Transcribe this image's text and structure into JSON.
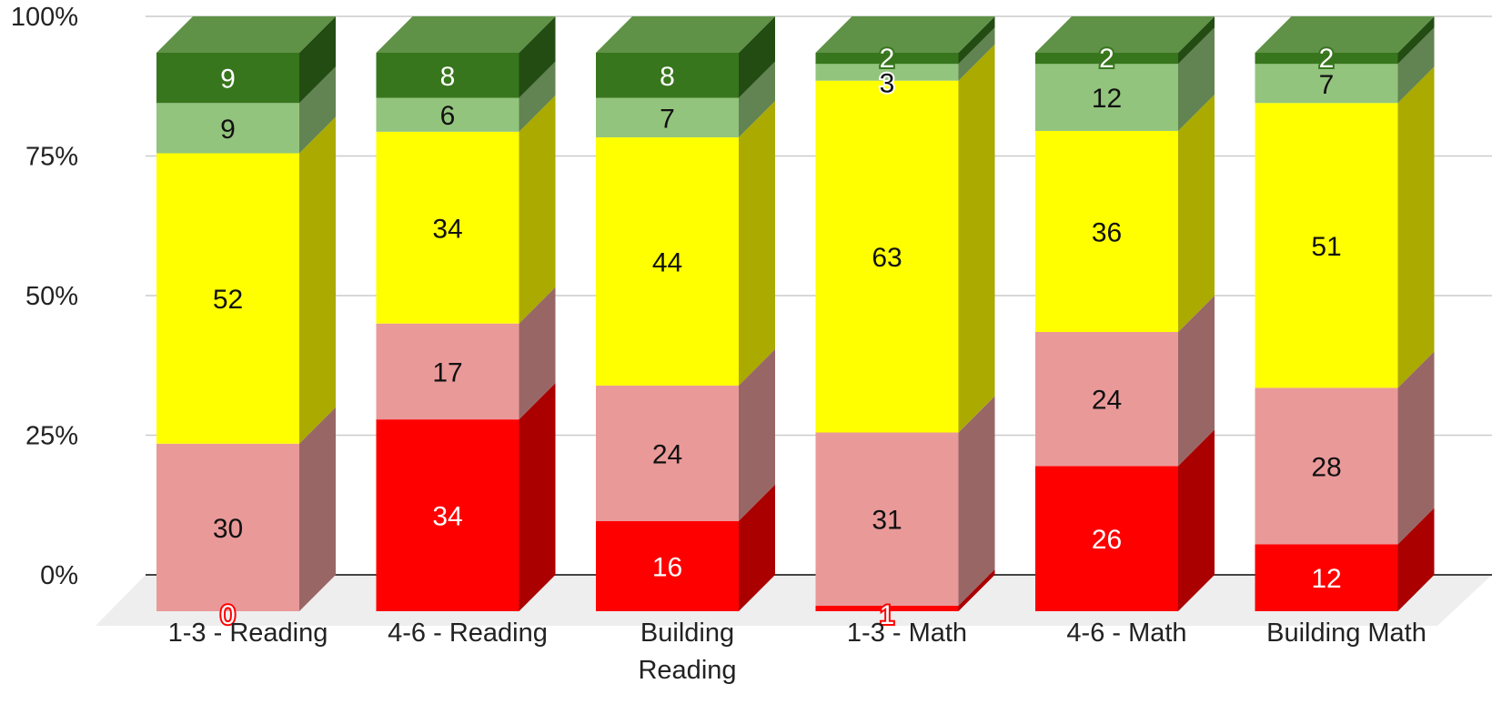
{
  "chart_data": {
    "type": "bar",
    "stacked": true,
    "normalized": true,
    "three_d": true,
    "categories": [
      "1-3 - Reading",
      "4-6 - Reading",
      "Building Reading",
      "1-3 - Math",
      "4-6 - Math",
      "Building Math"
    ],
    "category_lines": [
      [
        "1-3 - Reading"
      ],
      [
        "4-6 - Reading"
      ],
      [
        "Building",
        "Reading"
      ],
      [
        "1-3 - Math"
      ],
      [
        "4-6 - Math"
      ],
      [
        "Building Math"
      ]
    ],
    "series": [
      {
        "color": "#ff0000",
        "side_color": "#aa0000",
        "label_color": "#ffffff",
        "values": [
          0,
          34,
          16,
          1,
          26,
          12
        ]
      },
      {
        "color": "#ea9999",
        "side_color": "#996666",
        "label_color": "#111111",
        "values": [
          30,
          17,
          24,
          31,
          24,
          28
        ]
      },
      {
        "color": "#ffff00",
        "side_color": "#aaaa00",
        "label_color": "#111111",
        "values": [
          52,
          34,
          44,
          63,
          36,
          51
        ]
      },
      {
        "color": "#93c47d",
        "side_color": "#628352",
        "label_color": "#111111",
        "values": [
          9,
          6,
          7,
          3,
          12,
          7
        ]
      },
      {
        "color": "#38761d",
        "side_color": "#234c12",
        "label_color": "#ffffff",
        "values": [
          9,
          8,
          8,
          2,
          2,
          2
        ]
      }
    ],
    "top_color": "#5f9147",
    "y_ticks": [
      "0%",
      "25%",
      "50%",
      "75%",
      "100%"
    ],
    "ylim": [
      0,
      100
    ],
    "grid": true,
    "legend": "none",
    "title": "",
    "xlabel": "",
    "ylabel": ""
  }
}
